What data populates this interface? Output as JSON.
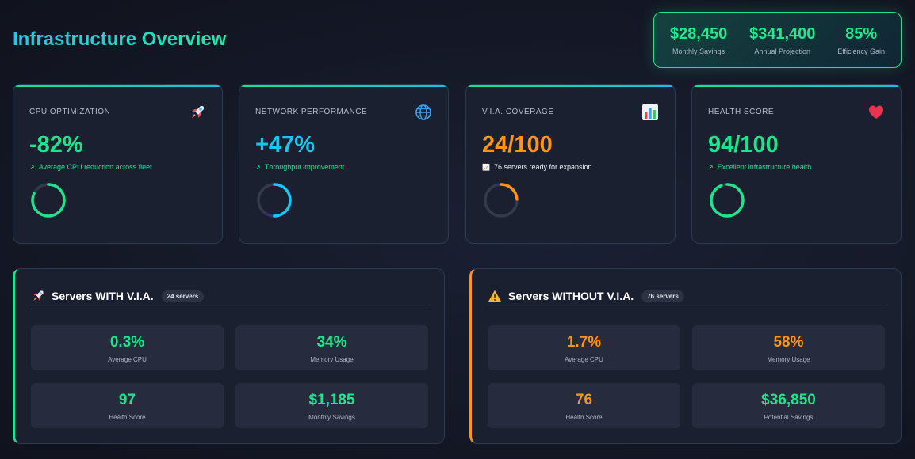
{
  "header": {
    "title": "Infrastructure Overview"
  },
  "summary": [
    {
      "value": "$28,450",
      "label": "Monthly Savings"
    },
    {
      "value": "$341,400",
      "label": "Annual Projection"
    },
    {
      "value": "85%",
      "label": "Efficiency Gain"
    }
  ],
  "kpis": [
    {
      "label": "CPU OPTIMIZATION",
      "icon": "rocket-icon",
      "value": "-82%",
      "arrow": "↗",
      "subtitle": "Average CPU reduction across fleet",
      "color": "#1ee58c",
      "ring_fraction": 0.82
    },
    {
      "label": "NETWORK PERFORMANCE",
      "icon": "globe-icon",
      "value": "+47%",
      "arrow": "↗",
      "subtitle": "Throughput improvement",
      "color": "#18c6f2",
      "ring_fraction": 0.5
    },
    {
      "label": "V.I.A. COVERAGE",
      "icon": "bar-chart-icon",
      "value": "24/100",
      "arrow": "📈",
      "subtitle": "76 servers ready for expansion",
      "color": "#ff9417",
      "ring_fraction": 0.24
    },
    {
      "label": "HEALTH SCORE",
      "icon": "heart-icon",
      "value": "94/100",
      "arrow": "↗",
      "subtitle": "Excellent infrastructure health",
      "color": "#1ee58c",
      "ring_fraction": 0.94
    }
  ],
  "panels": {
    "with": {
      "title": "Servers WITH V.I.A.",
      "badge": "24 servers",
      "stats": [
        {
          "value": "0.3%",
          "label": "Average CPU"
        },
        {
          "value": "34%",
          "label": "Memory Usage"
        },
        {
          "value": "97",
          "label": "Health Score"
        },
        {
          "value": "$1,185",
          "label": "Monthly Savings"
        }
      ]
    },
    "without": {
      "title": "Servers WITHOUT V.I.A.",
      "badge": "76 servers",
      "stats": [
        {
          "value": "1.7%",
          "label": "Average CPU"
        },
        {
          "value": "58%",
          "label": "Memory Usage"
        },
        {
          "value": "76",
          "label": "Health Score"
        },
        {
          "value": "$36,850",
          "label": "Potential Savings"
        }
      ]
    }
  },
  "colors": {
    "green": "#1ee58c",
    "cyan": "#18c6f2",
    "orange": "#ff9417"
  }
}
